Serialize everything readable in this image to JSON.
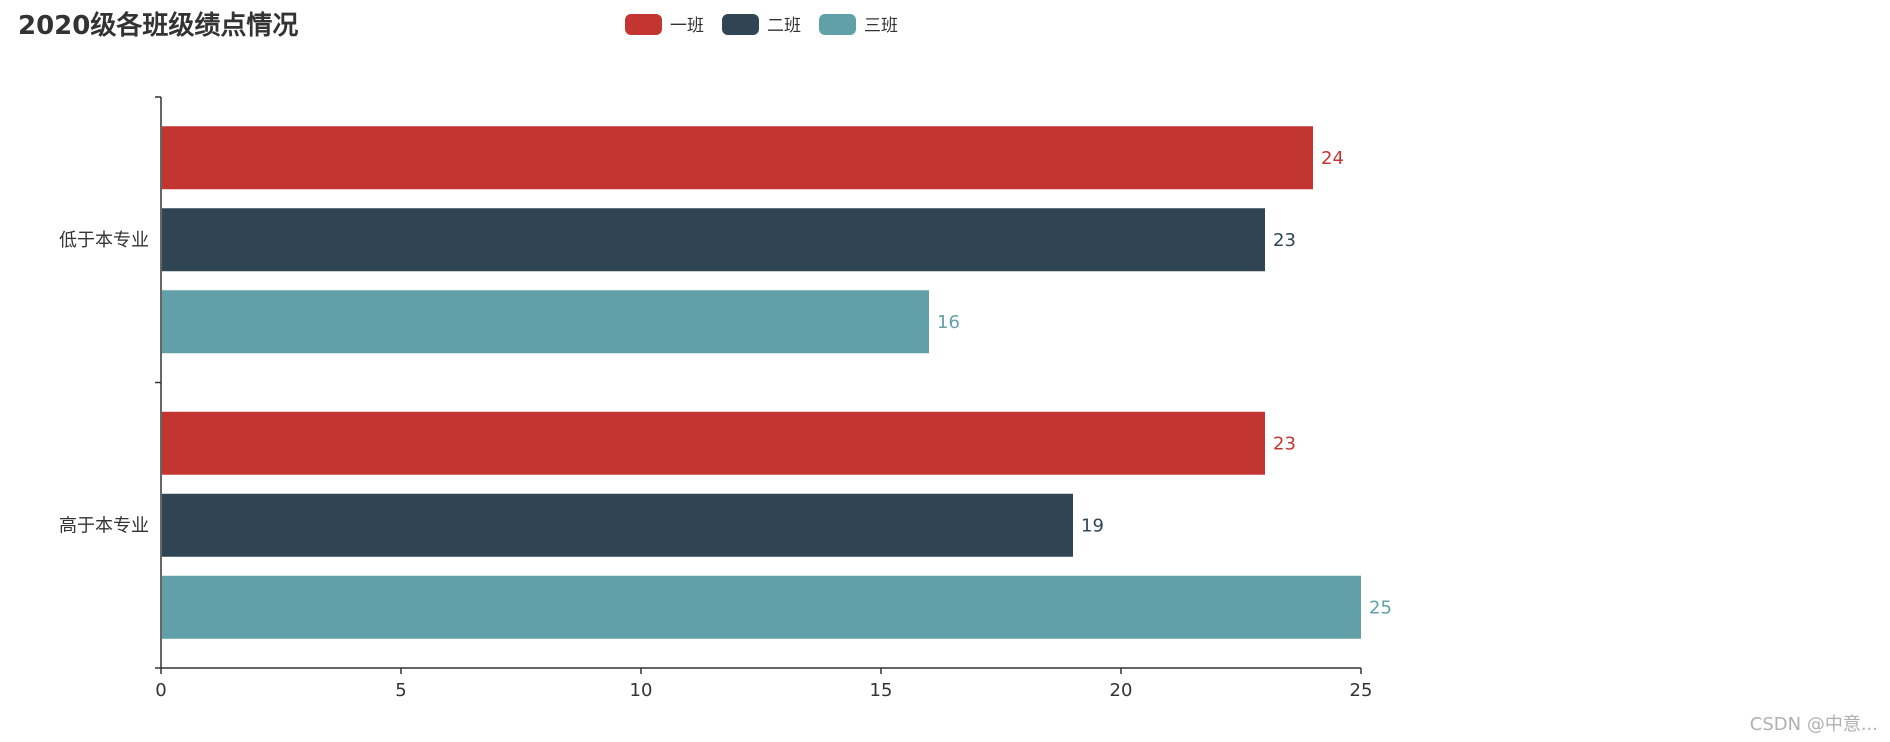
{
  "title": "2020级各班级绩点情况",
  "watermark": "CSDN @中意...",
  "legend": [
    {
      "name": "一班",
      "color": "#c23531"
    },
    {
      "name": "二班",
      "color": "#2f4554"
    },
    {
      "name": "三班",
      "color": "#61a0a8"
    }
  ],
  "chart_data": {
    "type": "bar",
    "orientation": "horizontal",
    "title": "2020级各班级绩点情况",
    "categories": [
      "低于本专业",
      "高于本专业"
    ],
    "series": [
      {
        "name": "一班",
        "color": "#c23531",
        "values": [
          24,
          23
        ]
      },
      {
        "name": "二班",
        "color": "#2f4554",
        "values": [
          23,
          19
        ]
      },
      {
        "name": "三班",
        "color": "#61a0a8",
        "values": [
          16,
          25
        ]
      }
    ],
    "xlim": [
      0,
      25
    ],
    "xticks": [
      0,
      5,
      10,
      15,
      20,
      25
    ],
    "xlabel": "",
    "ylabel": "",
    "grid": false,
    "legend_position": "top-center",
    "data_labels": "right"
  }
}
